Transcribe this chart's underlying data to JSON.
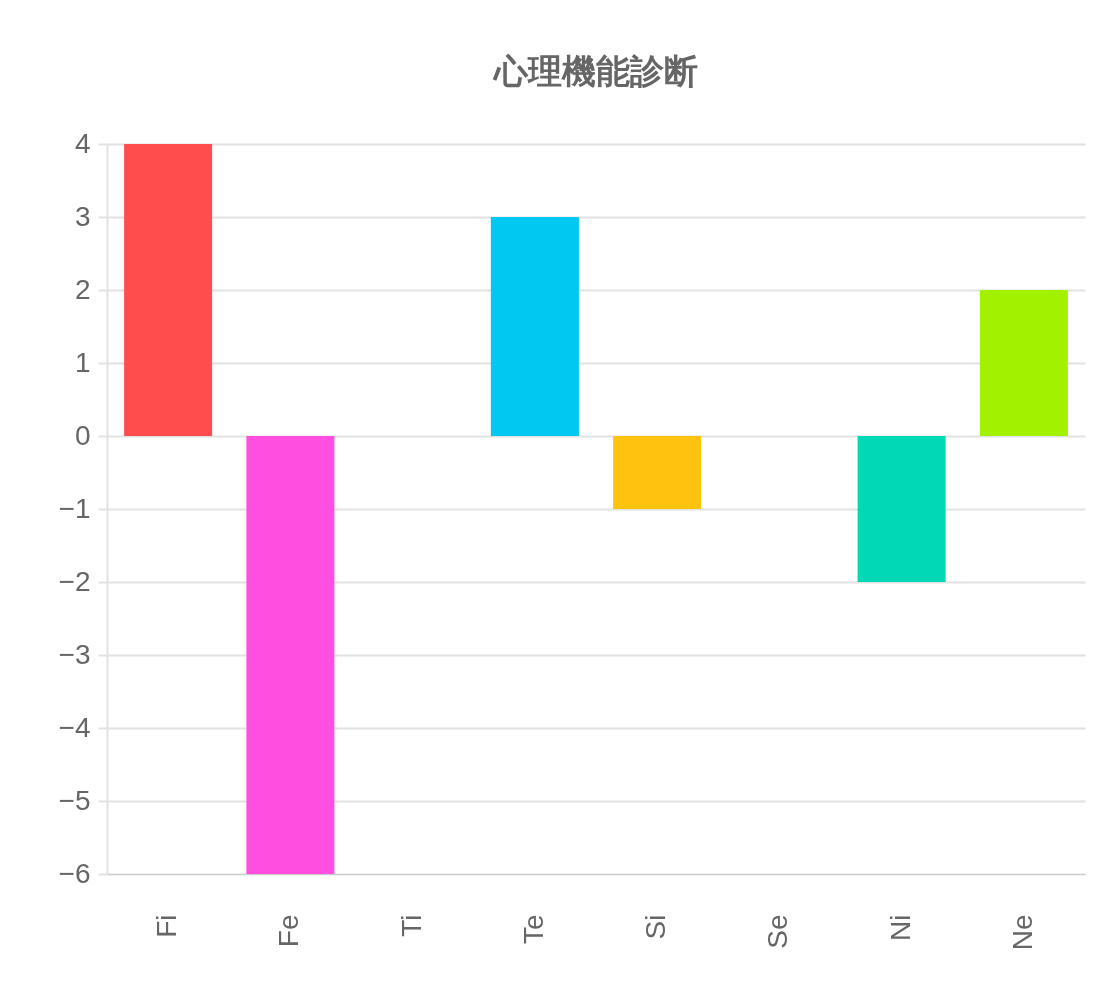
{
  "chart_data": {
    "type": "bar",
    "title": "心理機能診断",
    "categories": [
      "Fi",
      "Fe",
      "Ti",
      "Te",
      "Si",
      "Se",
      "Ni",
      "Ne"
    ],
    "values": [
      4,
      -6,
      0,
      3,
      -1,
      0,
      -2,
      2
    ],
    "colors": [
      "#ff4d4d",
      "#ff4fe0",
      "#4d7cff",
      "#00c8f0",
      "#ffc20e",
      "#ff9a2e",
      "#00d8b6",
      "#a2f200"
    ],
    "ylim": [
      -6,
      4
    ],
    "yticks": [
      -6,
      -5,
      -4,
      -3,
      -2,
      -1,
      0,
      1,
      2,
      3,
      4
    ],
    "grid": "y"
  }
}
